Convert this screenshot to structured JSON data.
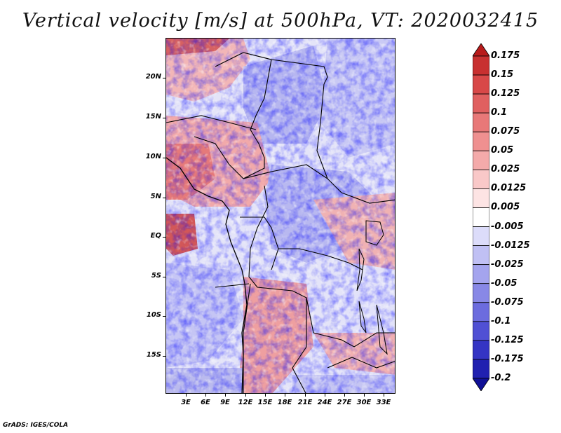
{
  "title": "Vertical velocity [m/s] at 500hPa, VT: 2020032415",
  "map": {
    "lat_labels": [
      "20N",
      "15N",
      "10N",
      "5N",
      "EQ",
      "5S",
      "10S",
      "15S"
    ],
    "lon_labels": [
      "3E",
      "6E",
      "9E",
      "12E",
      "15E",
      "18E",
      "21E",
      "24E",
      "27E",
      "30E",
      "33E"
    ]
  },
  "colorbar": {
    "labels": [
      "0.175",
      "0.15",
      "0.125",
      "0.1",
      "0.075",
      "0.05",
      "0.025",
      "0.0125",
      "0.005",
      "-0.005",
      "-0.0125",
      "-0.025",
      "-0.05",
      "-0.075",
      "-0.1",
      "-0.125",
      "-0.175",
      "-0.2"
    ],
    "colors": [
      "#b81b1b",
      "#c83030",
      "#d84848",
      "#e06060",
      "#e87878",
      "#ef9090",
      "#f4aaaa",
      "#f9c8c8",
      "#fde4e4",
      "#ffffff",
      "#dcdcfa",
      "#c0c0f4",
      "#a4a4ee",
      "#8888e6",
      "#6c6cde",
      "#5050d4",
      "#3434c4",
      "#2020b0",
      "#101096"
    ]
  },
  "footer": "GrADS: IGES/COLA"
}
